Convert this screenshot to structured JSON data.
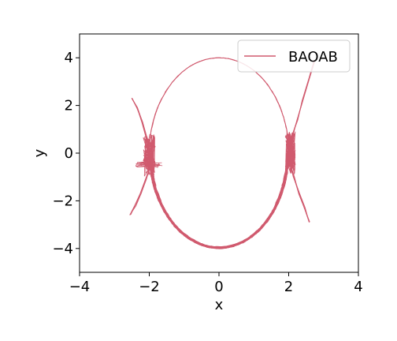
{
  "chart_data": {
    "type": "line",
    "title": "",
    "xlabel": "x",
    "ylabel": "y",
    "xlim": [
      -4,
      4
    ],
    "ylim": [
      -5,
      5
    ],
    "xticks": [
      -4,
      -2,
      0,
      2,
      4
    ],
    "yticks": [
      -4,
      -2,
      0,
      2,
      4
    ],
    "xtick_labels": [
      "−4",
      "−2",
      "0",
      "2",
      "4"
    ],
    "ytick_labels": [
      "−4",
      "−2",
      "0",
      "2",
      "4"
    ],
    "grid": false,
    "legend": {
      "position": "top-right",
      "entries": [
        "BAOAB"
      ]
    },
    "series": [
      {
        "name": "BAOAB",
        "color": "#d05a6e",
        "description_points": {
          "upper_arc": [
            [
              -2.0,
              0.0
            ],
            [
              -1.5,
              2.1
            ],
            [
              -1.0,
              3.3
            ],
            [
              -0.5,
              3.85
            ],
            [
              0.0,
              4.0
            ],
            [
              0.5,
              3.85
            ],
            [
              1.0,
              3.3
            ],
            [
              1.5,
              2.1
            ],
            [
              2.0,
              0.0
            ]
          ],
          "lower_arc": [
            [
              -2.0,
              0.0
            ],
            [
              -1.5,
              -2.1
            ],
            [
              -1.0,
              -3.3
            ],
            [
              -0.5,
              -3.85
            ],
            [
              0.0,
              -4.0
            ],
            [
              0.5,
              -3.85
            ],
            [
              1.0,
              -3.3
            ],
            [
              1.5,
              -2.1
            ],
            [
              2.0,
              0.0
            ]
          ],
          "left_branch_up": [
            [
              -2.0,
              0.0
            ],
            [
              -2.2,
              1.2
            ],
            [
              -2.5,
              2.3
            ]
          ],
          "left_branch_down": [
            [
              -2.0,
              -0.5
            ],
            [
              -2.3,
              -1.6
            ],
            [
              -2.55,
              -2.6
            ]
          ],
          "right_branch_up": [
            [
              2.0,
              0.0
            ],
            [
              2.3,
              1.6
            ],
            [
              2.75,
              3.9
            ]
          ],
          "right_branch_down": [
            [
              2.0,
              -0.3
            ],
            [
              2.3,
              -1.6
            ],
            [
              2.6,
              -2.9
            ]
          ]
        }
      }
    ]
  }
}
